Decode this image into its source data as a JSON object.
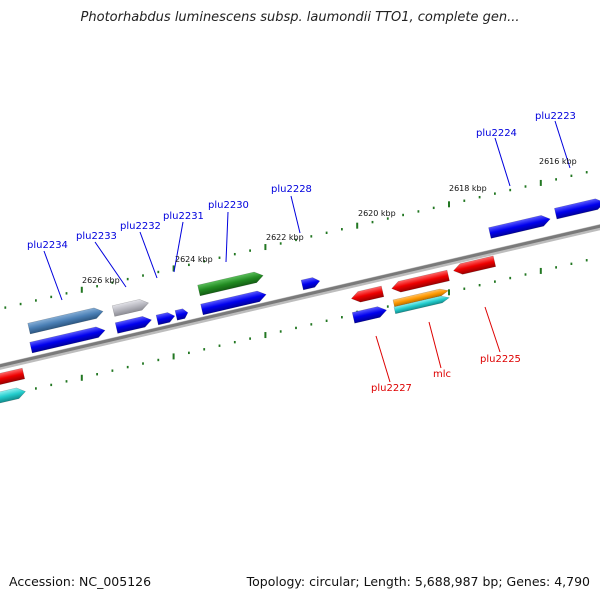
{
  "title": "Photorhabdus luminescens subsp. laumondii TTO1, complete gen...",
  "footer": {
    "accession": "Accession: NC_005126",
    "summary": "Topology: circular; Length: 5,688,987 bp; Genes: 4,790"
  },
  "scale_labels": [
    "2616 kbp",
    "2618 kbp",
    "2620 kbp",
    "2622 kbp",
    "2624 kbp",
    "2626 kbp"
  ],
  "gene_labels": {
    "forward": [
      "plu2223",
      "plu2224",
      "plu2228",
      "plu2230",
      "plu2231",
      "plu2232",
      "plu2233",
      "plu2234"
    ],
    "reverse": [
      "plu2225",
      "mlc",
      "plu2227"
    ]
  },
  "colors": {
    "forward_gene": "#0000ee",
    "reverse_gene": "#ee0000",
    "tick": "#227722",
    "backbone": "#888888",
    "gene_steelblue": "#4a7fb5",
    "gene_grey": "#b8b8c0",
    "gene_green": "#228b22",
    "gene_orange": "#ff9900",
    "gene_cyan": "#22cccc"
  }
}
